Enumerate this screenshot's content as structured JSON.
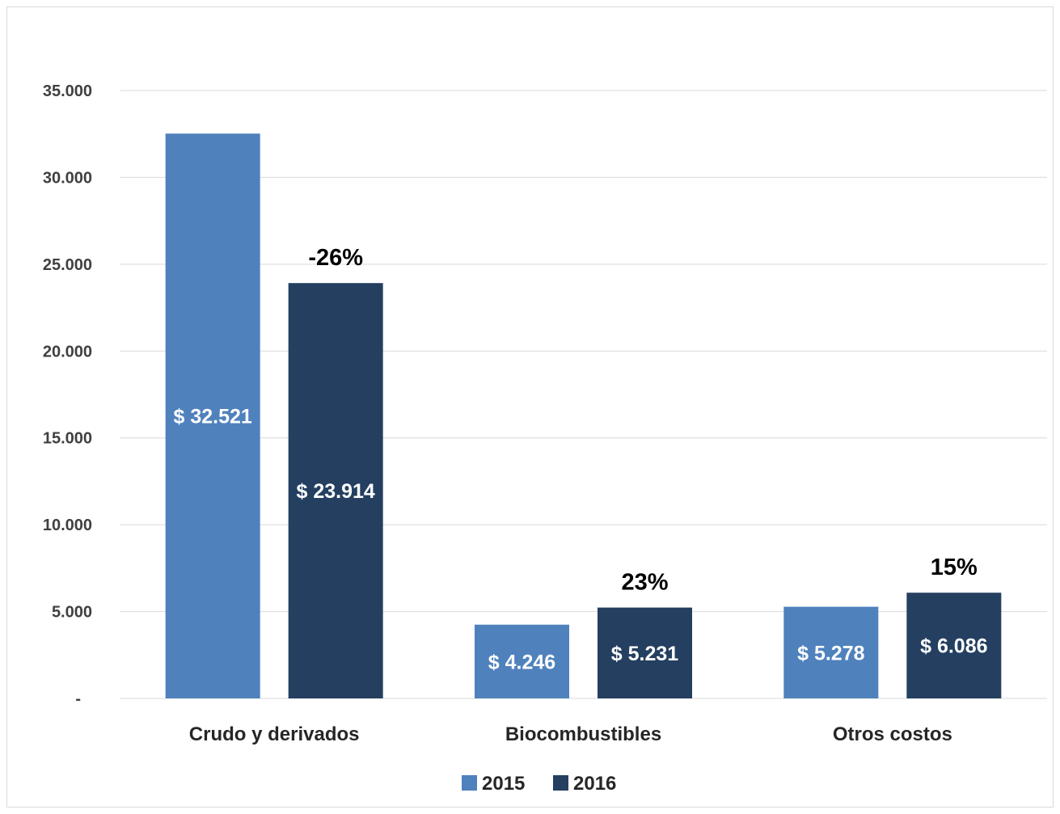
{
  "chart_data": {
    "type": "bar",
    "categories": [
      "Crudo y derivados",
      "Biocombustibles",
      "Otros costos"
    ],
    "series": [
      {
        "name": "2015",
        "values": [
          32521,
          4246,
          5278
        ],
        "labels": [
          "$ 32.521",
          "$ 4.246",
          "$ 5.278"
        ],
        "color": "#4f81bd"
      },
      {
        "name": "2016",
        "values": [
          23914,
          5231,
          6086
        ],
        "labels": [
          "$ 23.914",
          "$ 5.231",
          "$ 6.086"
        ],
        "color": "#243f60"
      }
    ],
    "changes": [
      "-26%",
      "23%",
      "15%"
    ],
    "y_ticks": [
      0,
      5000,
      10000,
      15000,
      20000,
      25000,
      30000,
      35000
    ],
    "y_tick_labels": [
      "-",
      "5.000",
      "10.000",
      "15.000",
      "20.000",
      "25.000",
      "30.000",
      "35.000"
    ],
    "ylim": [
      0,
      35000
    ],
    "title": "",
    "xlabel": "",
    "ylabel": "",
    "grid": true,
    "legend_position": "bottom"
  }
}
